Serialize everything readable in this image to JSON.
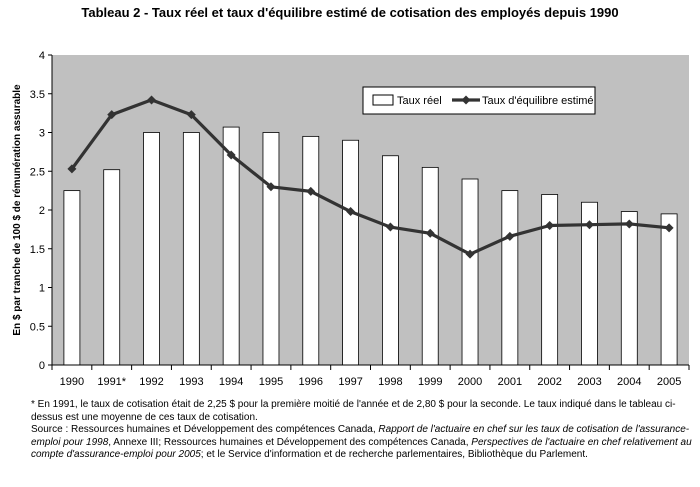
{
  "chart_data": {
    "type": "bar",
    "title": "Tableau 2 - Taux réel et taux d'équilibre estimé de cotisation des employés depuis 1990",
    "ylabel": "En $ par tranche de 100 $ de rémunération assurable",
    "xlabel": "",
    "ylim": [
      0,
      4
    ],
    "yticks": [
      "0",
      "0.5",
      "1",
      "1.5",
      "2",
      "2.5",
      "3",
      "3.5",
      "4"
    ],
    "categories": [
      "1990",
      "1991*",
      "1992",
      "1993",
      "1994",
      "1995",
      "1996",
      "1997",
      "1998",
      "1999",
      "2000",
      "2001",
      "2002",
      "2003",
      "2004",
      "2005"
    ],
    "series": [
      {
        "name": "Taux réel",
        "kind": "bar",
        "color": "#ffffff",
        "values": [
          2.25,
          2.52,
          3.0,
          3.0,
          3.07,
          3.0,
          2.95,
          2.9,
          2.7,
          2.55,
          2.4,
          2.25,
          2.2,
          2.1,
          1.98,
          1.95
        ]
      },
      {
        "name": "Taux d'équilibre estimé",
        "kind": "line",
        "color": "#333333",
        "values": [
          2.53,
          3.23,
          3.42,
          3.23,
          2.71,
          2.3,
          2.24,
          1.98,
          1.78,
          1.7,
          1.43,
          1.66,
          1.8,
          1.81,
          1.82,
          1.77
        ]
      }
    ],
    "grid": false,
    "plot_background": "#c0c0c0",
    "legend_position": "top-right"
  },
  "notes": {
    "footnote": "* En 1991, le taux de cotisation était de 2,25 $ pour la première moitié de l'année et de 2,80 $ pour la seconde. Le taux indiqué dans le tableau ci-dessus est une moyenne de ces taux de cotisation.",
    "source_prefix": "Source : Ressources humaines et Développement des compétences Canada, ",
    "source_title1": "Rapport de l'actuaire en chef sur les taux de cotisation de l'assurance-emploi pour 1998",
    "source_mid": ", Annexe III; Ressources humaines et Développement des compétences Canada, ",
    "source_title2": "Perspectives de l'actuaire en chef relativement au compte d'assurance-emploi pour 2005",
    "source_suffix": "; et le Service d'information et de recherche parlementaires, Bibliothèque du Parlement."
  }
}
